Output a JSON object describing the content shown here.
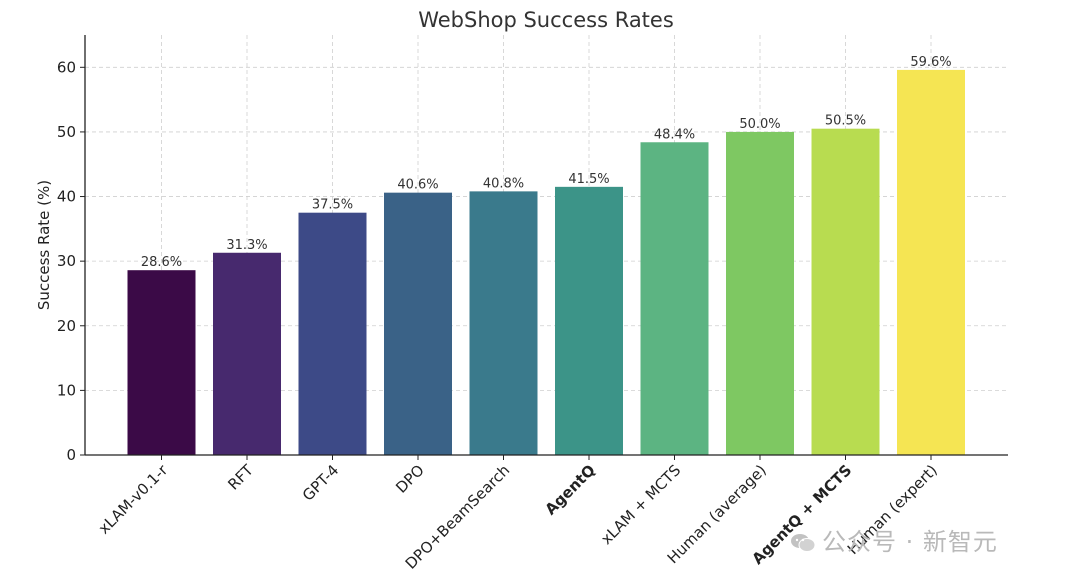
{
  "chart_data": {
    "type": "bar",
    "title": "WebShop Success Rates",
    "xlabel": "",
    "ylabel": "Success Rate (%)",
    "ylim": [
      0,
      65
    ],
    "yticks": [
      0,
      10,
      20,
      30,
      40,
      50,
      60
    ],
    "grid": true,
    "categories": [
      "xLAM-v0.1-r",
      "RFT",
      "GPT-4",
      "DPO",
      "DPO+BeamSearch",
      "AgentQ",
      "xLAM + MCTS",
      "Human (average)",
      "AgentQ + MCTS",
      "Human (expert)"
    ],
    "bold_categories": [
      "AgentQ",
      "AgentQ + MCTS"
    ],
    "values": [
      28.6,
      31.3,
      37.5,
      40.6,
      40.8,
      41.5,
      48.4,
      50.0,
      50.5,
      59.6
    ],
    "data_labels": [
      "28.6%",
      "31.3%",
      "37.5%",
      "40.6%",
      "40.8%",
      "41.5%",
      "48.4%",
      "50.0%",
      "50.5%",
      "59.6%"
    ],
    "colors": [
      "#3b0a47",
      "#47296e",
      "#3d4a87",
      "#3a6287",
      "#3a7a8c",
      "#3c9488",
      "#5cb482",
      "#7ec862",
      "#b8dc50",
      "#f5e553"
    ]
  },
  "watermark": {
    "text": "公众号 · 新智元",
    "icon": "wechat-icon"
  }
}
